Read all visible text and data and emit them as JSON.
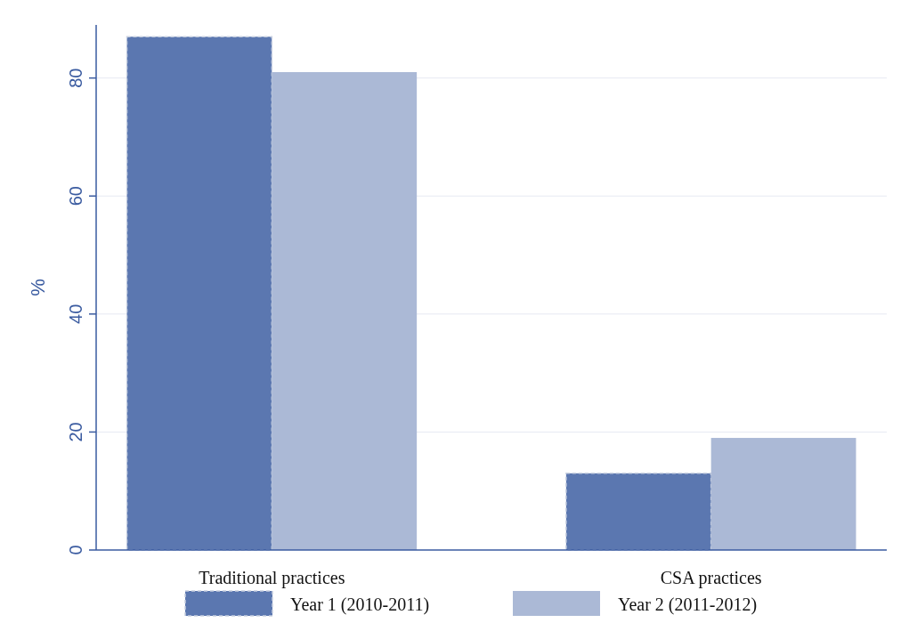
{
  "chart_data": {
    "type": "bar",
    "ylabel": "%",
    "categories": [
      "Traditional practices",
      "CSA practices"
    ],
    "series": [
      {
        "name": "Year 1 (2010-2011)",
        "color": "#5b77b0",
        "values": [
          87,
          13
        ],
        "line_style": "dashed"
      },
      {
        "name": "Year 2 (2011-2012)",
        "color": "#abb9d6",
        "values": [
          81,
          19
        ]
      }
    ],
    "ylim": [
      0,
      89
    ],
    "yticks": [
      0,
      20,
      40,
      60,
      80
    ],
    "grid": "y",
    "legend": "bottom"
  }
}
